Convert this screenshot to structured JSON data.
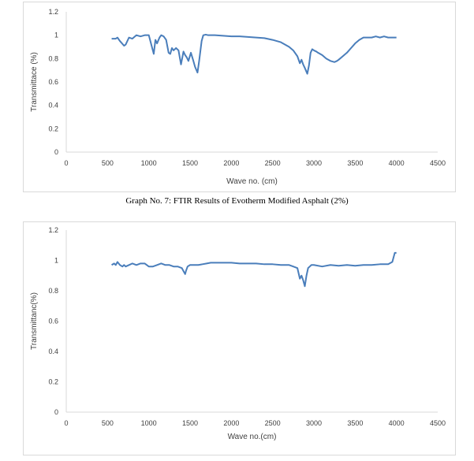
{
  "caption": "Graph No. 7: FTIR Results of Evotherm Modified Asphalt (2%)",
  "colors": {
    "line": "#4a7ebb",
    "axis": "#d9d9d9",
    "text": "#404040"
  },
  "chart_data": [
    {
      "type": "line",
      "title": "",
      "xlabel": "Wave no. (cm)",
      "ylabel": "Transmittace (%)",
      "xlim": [
        0,
        4500
      ],
      "ylim": [
        0,
        1.2
      ],
      "xticks": [
        "0",
        "500",
        "1000",
        "1500",
        "2000",
        "2500",
        "3000",
        "3500",
        "4000",
        "4500"
      ],
      "yticks": [
        "0",
        "0.2",
        "0.4",
        "0.6",
        "0.8",
        "1",
        "1.2"
      ],
      "grid": false,
      "series": [
        {
          "x": [
            550,
            600,
            620,
            650,
            700,
            720,
            760,
            800,
            850,
            900,
            950,
            1000,
            1030,
            1060,
            1080,
            1100,
            1130,
            1150,
            1180,
            1210,
            1240,
            1260,
            1280,
            1300,
            1330,
            1360,
            1390,
            1420,
            1440,
            1460,
            1480,
            1510,
            1540,
            1560,
            1590,
            1610,
            1640,
            1660,
            1690,
            1720,
            1750,
            1800,
            1900,
            2000,
            2100,
            2200,
            2300,
            2400,
            2500,
            2600,
            2700,
            2750,
            2800,
            2830,
            2850,
            2870,
            2890,
            2920,
            2940,
            2960,
            2980,
            3000,
            3030,
            3050,
            3100,
            3150,
            3200,
            3250,
            3280,
            3300,
            3350,
            3400,
            3450,
            3500,
            3550,
            3600,
            3650,
            3700,
            3750,
            3800,
            3850,
            3900,
            3950,
            4000
          ],
          "y": [
            0.97,
            0.97,
            0.98,
            0.95,
            0.91,
            0.92,
            0.98,
            0.97,
            1.0,
            0.99,
            1.0,
            1.0,
            0.92,
            0.84,
            0.96,
            0.93,
            0.98,
            1.0,
            0.99,
            0.96,
            0.85,
            0.84,
            0.89,
            0.87,
            0.89,
            0.87,
            0.75,
            0.86,
            0.83,
            0.81,
            0.78,
            0.85,
            0.78,
            0.73,
            0.68,
            0.78,
            0.95,
            1.0,
            1.005,
            1.0,
            1.0,
            1.0,
            0.995,
            0.99,
            0.99,
            0.985,
            0.98,
            0.975,
            0.96,
            0.94,
            0.9,
            0.87,
            0.82,
            0.76,
            0.79,
            0.75,
            0.72,
            0.67,
            0.74,
            0.85,
            0.88,
            0.87,
            0.86,
            0.85,
            0.83,
            0.8,
            0.78,
            0.77,
            0.78,
            0.79,
            0.82,
            0.85,
            0.89,
            0.93,
            0.96,
            0.98,
            0.98,
            0.98,
            0.99,
            0.98,
            0.99,
            0.98,
            0.98,
            0.98
          ]
        }
      ]
    },
    {
      "type": "line",
      "title": "",
      "xlabel": "Wave no.(cm)",
      "ylabel": "Transmittanc(%)",
      "xlim": [
        0,
        4500
      ],
      "ylim": [
        0,
        1.2
      ],
      "xticks": [
        "0",
        "500",
        "1000",
        "1500",
        "2000",
        "2500",
        "3000",
        "3500",
        "4000",
        "4500"
      ],
      "yticks": [
        "0",
        "0.2",
        "0.4",
        "0.6",
        "0.8",
        "1",
        "1.2"
      ],
      "grid": false,
      "series": [
        {
          "x": [
            550,
            580,
            600,
            620,
            650,
            680,
            700,
            720,
            760,
            800,
            850,
            900,
            950,
            1000,
            1050,
            1100,
            1150,
            1200,
            1250,
            1300,
            1350,
            1400,
            1420,
            1440,
            1450,
            1470,
            1500,
            1550,
            1600,
            1650,
            1700,
            1750,
            1800,
            1900,
            2000,
            2100,
            2200,
            2300,
            2400,
            2500,
            2600,
            2700,
            2750,
            2800,
            2830,
            2850,
            2870,
            2890,
            2910,
            2930,
            2950,
            2970,
            3000,
            3100,
            3200,
            3300,
            3400,
            3500,
            3600,
            3700,
            3800,
            3900,
            3950,
            3980,
            4000
          ],
          "y": [
            0.97,
            0.98,
            0.97,
            0.99,
            0.97,
            0.96,
            0.97,
            0.96,
            0.97,
            0.98,
            0.97,
            0.98,
            0.98,
            0.96,
            0.96,
            0.97,
            0.98,
            0.97,
            0.97,
            0.96,
            0.96,
            0.95,
            0.93,
            0.91,
            0.93,
            0.96,
            0.97,
            0.97,
            0.97,
            0.975,
            0.98,
            0.985,
            0.985,
            0.985,
            0.985,
            0.98,
            0.98,
            0.98,
            0.975,
            0.975,
            0.97,
            0.97,
            0.96,
            0.95,
            0.88,
            0.9,
            0.87,
            0.83,
            0.9,
            0.95,
            0.96,
            0.97,
            0.97,
            0.96,
            0.97,
            0.965,
            0.97,
            0.965,
            0.97,
            0.97,
            0.975,
            0.975,
            0.99,
            1.05,
            1.05
          ]
        }
      ]
    }
  ]
}
